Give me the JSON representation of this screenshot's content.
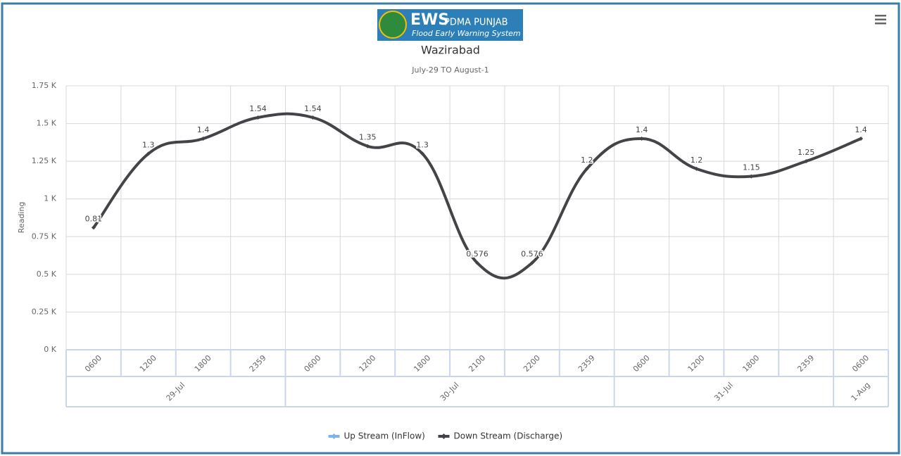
{
  "logo": {
    "brand": "EWS",
    "org": "PDMA PUNJAB",
    "tagline": "Flood Early Warning System"
  },
  "chart_data": {
    "type": "line",
    "title": "Wazirabad",
    "subtitle": "July-29 TO August-1",
    "y_axis_label": "Reading",
    "groups": [
      {
        "label": "29-Jul",
        "categories": [
          "0600",
          "1200",
          "1800",
          "2359"
        ]
      },
      {
        "label": "30-Jul",
        "categories": [
          "0600",
          "1200",
          "1800",
          "2100",
          "2200",
          "2359"
        ]
      },
      {
        "label": "31-Jul",
        "categories": [
          "0600",
          "1200",
          "1800",
          "2359"
        ]
      },
      {
        "label": "1-Aug",
        "categories": [
          "0600"
        ]
      }
    ],
    "series": [
      {
        "name": "Up Stream (InFlow)",
        "color": "#7cb5ec",
        "values": [
          null,
          null,
          null,
          null,
          null,
          null,
          null,
          null,
          null,
          null,
          null,
          null,
          null,
          null,
          null
        ]
      },
      {
        "name": "Down Stream (Discharge)",
        "color": "#434348",
        "values": [
          0.81,
          1.3,
          1.4,
          1.54,
          1.54,
          1.35,
          1.3,
          0.576,
          0.576,
          1.2,
          1.4,
          1.2,
          1.15,
          1.25,
          1.4
        ]
      }
    ],
    "ylim": [
      0,
      1.75
    ],
    "yticks": [
      {
        "value": 0,
        "label": "0 K"
      },
      {
        "value": 0.25,
        "label": "0.25 K"
      },
      {
        "value": 0.5,
        "label": "0.5 K"
      },
      {
        "value": 0.75,
        "label": "0.75 K"
      },
      {
        "value": 1,
        "label": "1 K"
      },
      {
        "value": 1.25,
        "label": "1.25 K"
      },
      {
        "value": 1.5,
        "label": "1.5 K"
      },
      {
        "value": 1.75,
        "label": "1.75 K"
      }
    ],
    "grid": true,
    "legend": "bottom"
  }
}
